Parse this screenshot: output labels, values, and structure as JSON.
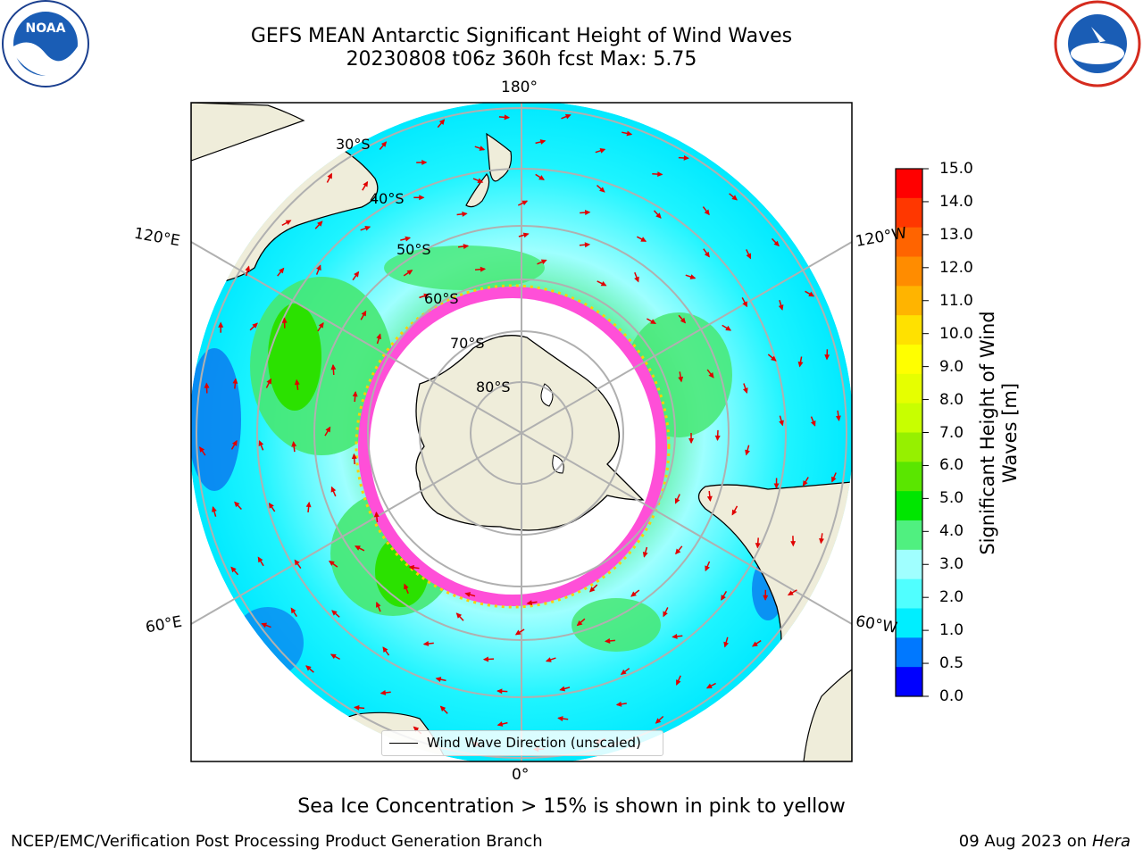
{
  "title": {
    "line1": "GEFS MEAN Antarctic Significant Height of Wind Waves",
    "line2": "20230808 t06z 360h fcst   Max: 5.75"
  },
  "map": {
    "projection": "south-polar-stereographic",
    "longitude_labels": [
      "180°",
      "120°E",
      "120°W",
      "60°E",
      "60°W",
      "0°"
    ],
    "latitude_labels": [
      "30°S",
      "40°S",
      "50°S",
      "60°S",
      "70°S",
      "80°S"
    ],
    "colors": {
      "land": "#efedda",
      "ice": "#ffffff",
      "grid": "#b0b0b0",
      "arrow": "#e00000",
      "ice_edge": "#ff4fd8"
    }
  },
  "colorbar": {
    "label": "Significant Height of Wind\nWaves [m]",
    "ticks": [
      "15.0",
      "14.0",
      "13.0",
      "12.0",
      "11.0",
      "10.0",
      "9.0",
      "8.0",
      "7.0",
      "6.0",
      "5.0",
      "4.0",
      "3.0",
      "2.0",
      "1.0",
      "0.5",
      "0.0"
    ],
    "colors": [
      "#ff0000",
      "#ff3700",
      "#ff6400",
      "#ff8c00",
      "#ffb400",
      "#ffe100",
      "#ffff00",
      "#e6ff00",
      "#c8ff00",
      "#96f000",
      "#5ae600",
      "#00e600",
      "#50f080",
      "#a0ffff",
      "#50ffff",
      "#00eeff",
      "#0078ff",
      "#0000ff"
    ]
  },
  "legend": {
    "label": "Wind Wave Direction (unscaled)"
  },
  "footnote": "Sea Ice Concentration > 15% is shown in pink to yellow",
  "credit": "NCEP/EMC/Verification Post Processing Product Generation Branch",
  "date": {
    "text": "09 Aug 2023 on",
    "host": "Hera"
  },
  "logos": {
    "left": "NOAA",
    "right": "NATIONAL WEATHER SERVICE"
  }
}
